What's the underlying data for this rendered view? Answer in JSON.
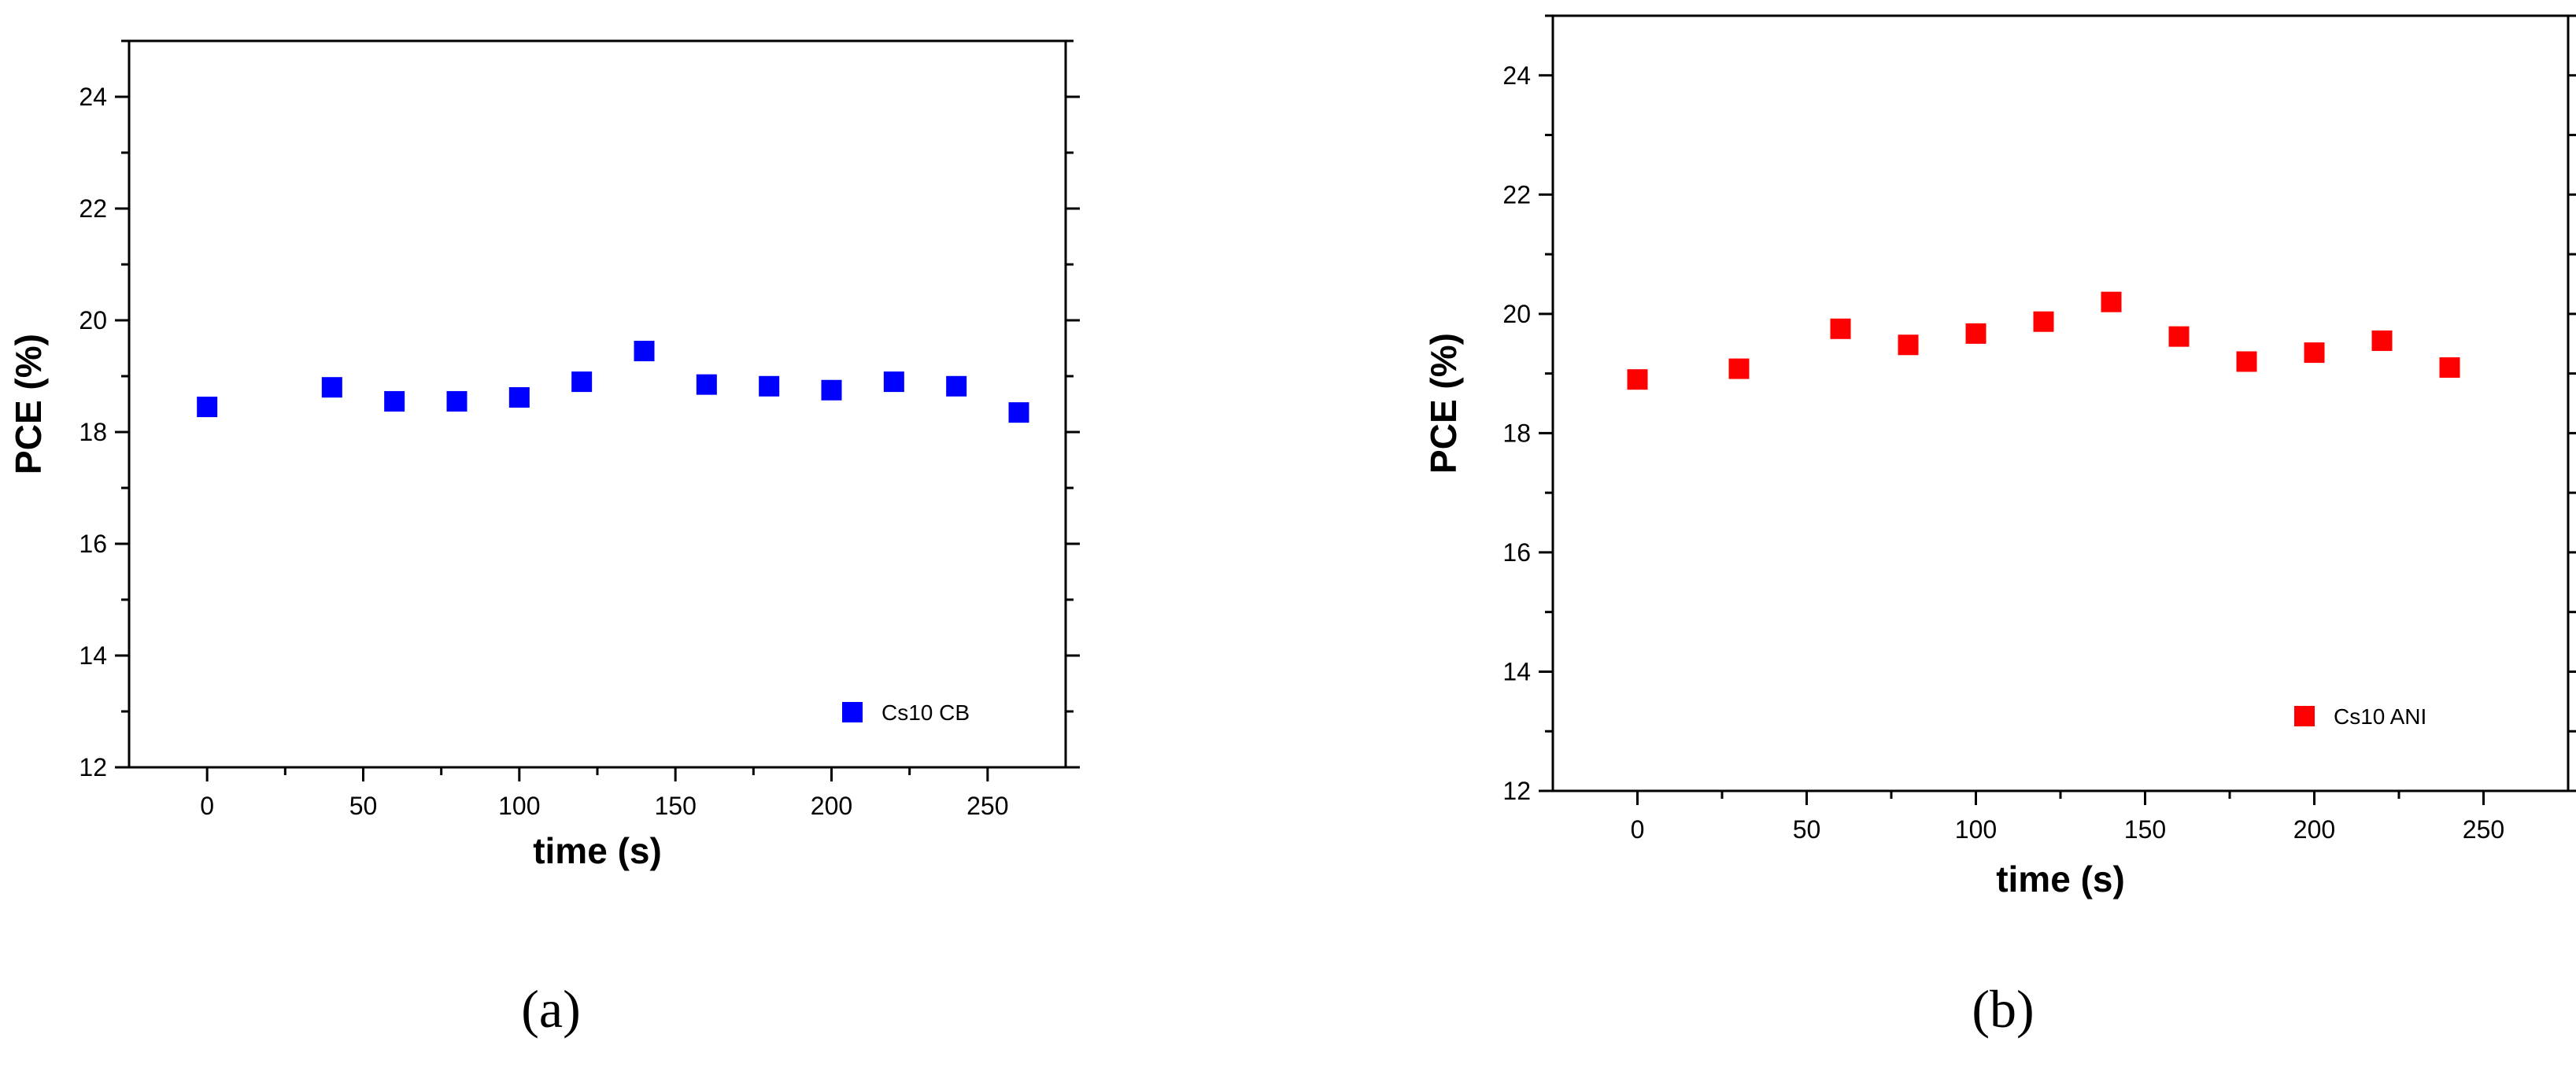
{
  "chart_data": [
    {
      "type": "scatter",
      "xlabel": "time (s)",
      "ylabel": "PCE (%)",
      "xlim": [
        -25,
        275
      ],
      "ylim": [
        12,
        25
      ],
      "xticks": [
        0,
        50,
        100,
        150,
        200,
        250
      ],
      "yticks": [
        12,
        14,
        16,
        18,
        20,
        22,
        24
      ],
      "grid": false,
      "legend_position": "bottom-right",
      "caption": "(a)",
      "series": [
        {
          "name": "Cs10 CB",
          "color": "#0000ff",
          "marker": "square",
          "x": [
            0,
            40,
            60,
            80,
            100,
            120,
            140,
            160,
            180,
            200,
            220,
            240,
            260
          ],
          "y": [
            18.45,
            18.8,
            18.55,
            18.55,
            18.62,
            18.9,
            19.45,
            18.85,
            18.82,
            18.75,
            18.9,
            18.82,
            18.35
          ]
        }
      ]
    },
    {
      "type": "scatter",
      "xlabel": "time (s)",
      "ylabel": "PCE (%)",
      "xlim": [
        -25,
        275
      ],
      "ylim": [
        12,
        25
      ],
      "xticks": [
        0,
        50,
        100,
        150,
        200,
        250
      ],
      "yticks": [
        12,
        14,
        16,
        18,
        20,
        22,
        24
      ],
      "grid": false,
      "legend_position": "bottom-right",
      "caption": "(b)",
      "series": [
        {
          "name": "Cs10 ANI",
          "color": "#ff0000",
          "marker": "square",
          "x": [
            0,
            30,
            60,
            80,
            100,
            120,
            140,
            160,
            180,
            200,
            220,
            240
          ],
          "y": [
            18.9,
            19.08,
            19.75,
            19.48,
            19.67,
            19.87,
            20.2,
            19.62,
            19.2,
            19.35,
            19.55,
            19.1
          ]
        }
      ]
    }
  ]
}
